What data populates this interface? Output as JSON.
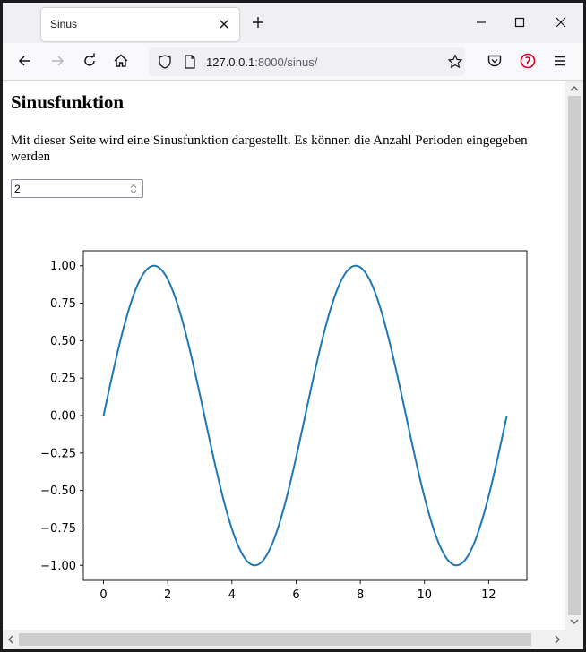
{
  "browser": {
    "tab_title": "Sinus",
    "url_host": "127.0.0.1",
    "url_rest": ":8000/sinus/"
  },
  "page": {
    "heading": "Sinusfunktion",
    "description": "Mit dieser Seite wird eine Sinusfunktion dargestellt. Es können die Anzahl Perioden eingegeben werden",
    "periods_value": "2"
  },
  "icons": {
    "tab_close": "close-icon",
    "new_tab": "plus-icon",
    "back": "arrow-left-icon",
    "forward": "arrow-right-icon",
    "reload": "reload-icon",
    "home": "home-icon",
    "shield": "shield-icon",
    "page": "page-icon",
    "bookmark": "star-icon",
    "pocket": "pocket-icon",
    "extension": "extension-icon",
    "menu": "hamburger-menu-icon"
  },
  "chart_data": {
    "type": "line",
    "title": "",
    "xlabel": "",
    "ylabel": "",
    "function": "sin(x)",
    "x_range": [
      0,
      12.566
    ],
    "xlim": [
      -0.63,
      13.19
    ],
    "ylim": [
      -1.1,
      1.1
    ],
    "xticks": [
      0,
      2,
      4,
      6,
      8,
      10,
      12
    ],
    "yticks": [
      1.0,
      0.75,
      0.5,
      0.25,
      0.0,
      -0.25,
      -0.5,
      -0.75,
      -1.0
    ],
    "ytick_labels": [
      "1.00",
      "0.75",
      "0.50",
      "0.25",
      "0.00",
      "−0.25",
      "−0.50",
      "−0.75",
      "−1.00"
    ],
    "xtick_labels": [
      "0",
      "2",
      "4",
      "6",
      "8",
      "10",
      "12"
    ],
    "series": [
      {
        "color": "#1f77b4",
        "points": [
          [
            0.0,
            0.0
          ],
          [
            0.785,
            0.707
          ],
          [
            1.571,
            1.0
          ],
          [
            2.356,
            0.707
          ],
          [
            3.142,
            0.0
          ],
          [
            3.927,
            -0.707
          ],
          [
            4.712,
            -1.0
          ],
          [
            5.498,
            -0.707
          ],
          [
            6.283,
            0.0
          ],
          [
            7.069,
            0.707
          ],
          [
            7.854,
            1.0
          ],
          [
            8.639,
            0.707
          ],
          [
            9.425,
            0.0
          ],
          [
            10.21,
            -0.707
          ],
          [
            10.996,
            -1.0
          ],
          [
            11.781,
            -0.707
          ],
          [
            12.566,
            0.0
          ]
        ]
      }
    ],
    "grid": false
  }
}
